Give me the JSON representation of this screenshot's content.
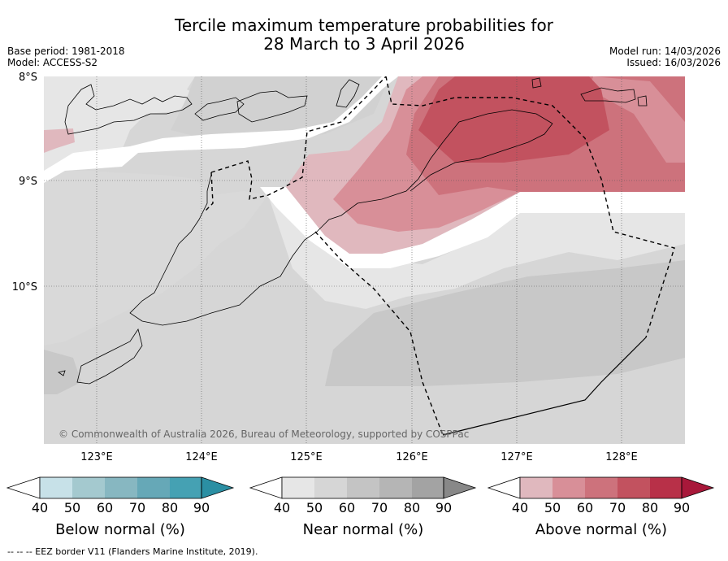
{
  "title": {
    "line1": "Tercile maximum temperature probabilities for",
    "line2": "28 March to 3 April 2026"
  },
  "meta": {
    "base_period": "Base period: 1981-2018",
    "model": "Model: ACCESS-S2",
    "model_run": "Model run: 14/03/2026",
    "issued": "Issued: 16/03/2026"
  },
  "map": {
    "lat_labels": [
      "8°S",
      "9°S",
      "10°S"
    ],
    "lon_labels": [
      "123°E",
      "124°E",
      "125°E",
      "126°E",
      "127°E",
      "128°E"
    ],
    "copyright": "© Commonwealth of Australia 2026, Bureau of Meteorology, supported by COSPPac"
  },
  "colorbars": [
    {
      "label": "Below normal (%)",
      "ticks": [
        "40",
        "50",
        "60",
        "70",
        "80",
        "90"
      ],
      "colors": [
        "#c7e1e8",
        "#a4c9cf",
        "#87b7c1",
        "#66a8b7",
        "#45a1b3",
        "#2b8fa3"
      ]
    },
    {
      "label": "Near normal (%)",
      "ticks": [
        "40",
        "50",
        "60",
        "70",
        "80",
        "90"
      ],
      "colors": [
        "#e6e6e6",
        "#d6d6d6",
        "#c4c4c4",
        "#b5b5b5",
        "#a3a3a3",
        "#888888"
      ]
    },
    {
      "label": "Above normal (%)",
      "ticks": [
        "40",
        "50",
        "60",
        "70",
        "80",
        "90"
      ],
      "colors": [
        "#e0b8be",
        "#d88f98",
        "#cd727c",
        "#c2525f",
        "#b83048",
        "#a8183a"
      ]
    }
  ],
  "footer": "--  --  -- EEZ border V11 (Flanders Marine Institute, 2019)."
}
